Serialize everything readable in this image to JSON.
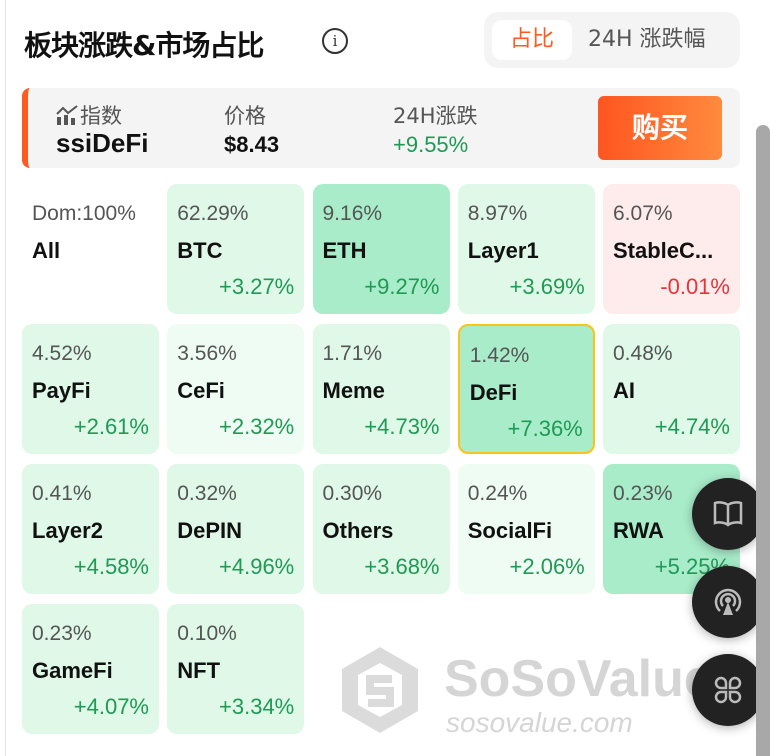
{
  "header": {
    "title": "板块涨跌&市场占比",
    "toggle": [
      "占比",
      "24H 涨跌幅"
    ],
    "active_toggle": "占比"
  },
  "index": {
    "label": "指数",
    "name": "ssiDeFi",
    "price_label": "价格",
    "price": "$8.43",
    "change_label": "24H涨跌",
    "change": "+9.55%",
    "buy": "购买"
  },
  "sectors": [
    {
      "pct": "Dom:100%",
      "name": "All",
      "change": ""
    },
    {
      "pct": "62.29%",
      "name": "BTC",
      "change": "+3.27%"
    },
    {
      "pct": "9.16%",
      "name": "ETH",
      "change": "+9.27%"
    },
    {
      "pct": "8.97%",
      "name": "Layer1",
      "change": "+3.69%"
    },
    {
      "pct": "6.07%",
      "name": "StableC...",
      "change": "-0.01%"
    },
    {
      "pct": "4.52%",
      "name": "PayFi",
      "change": "+2.61%"
    },
    {
      "pct": "3.56%",
      "name": "CeFi",
      "change": "+2.32%"
    },
    {
      "pct": "1.71%",
      "name": "Meme",
      "change": "+4.73%"
    },
    {
      "pct": "1.42%",
      "name": "DeFi",
      "change": "+7.36%",
      "selected": true
    },
    {
      "pct": "0.48%",
      "name": "AI",
      "change": "+4.74%"
    },
    {
      "pct": "0.41%",
      "name": "Layer2",
      "change": "+4.58%"
    },
    {
      "pct": "0.32%",
      "name": "DePIN",
      "change": "+4.96%"
    },
    {
      "pct": "0.30%",
      "name": "Others",
      "change": "+3.68%"
    },
    {
      "pct": "0.24%",
      "name": "SocialFi",
      "change": "+2.06%"
    },
    {
      "pct": "0.23%",
      "name": "RWA",
      "change": "+5.25%"
    },
    {
      "pct": "0.23%",
      "name": "GameFi",
      "change": "+4.07%"
    },
    {
      "pct": "0.10%",
      "name": "NFT",
      "change": "+3.34%"
    }
  ],
  "watermark": {
    "brand": "SoSoValue",
    "url": "sosovalue.com"
  },
  "fabs": [
    "book-icon",
    "broadcast-icon",
    "clover-menu-icon"
  ],
  "colors": {
    "accent": "#ff5a1f",
    "up": "#1f9a55",
    "down": "#e5343a"
  }
}
